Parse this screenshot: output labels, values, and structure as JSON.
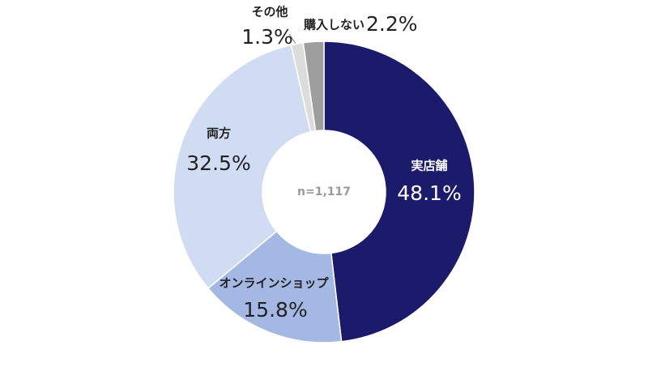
{
  "chart_data": {
    "type": "donut",
    "center_label": "n=1,117",
    "categories": [
      "実店舗",
      "オンラインショップ",
      "両方",
      "その他",
      "購入しない"
    ],
    "values": [
      48.1,
      15.8,
      32.5,
      1.3,
      2.2
    ],
    "value_labels": [
      "48.1%",
      "15.8%",
      "32.5%",
      "1.3%",
      "2.2%"
    ],
    "colors": [
      "#1b1a6b",
      "#a3b9e4",
      "#d0dcf2",
      "#dcdcdc",
      "#9e9e9e"
    ]
  }
}
